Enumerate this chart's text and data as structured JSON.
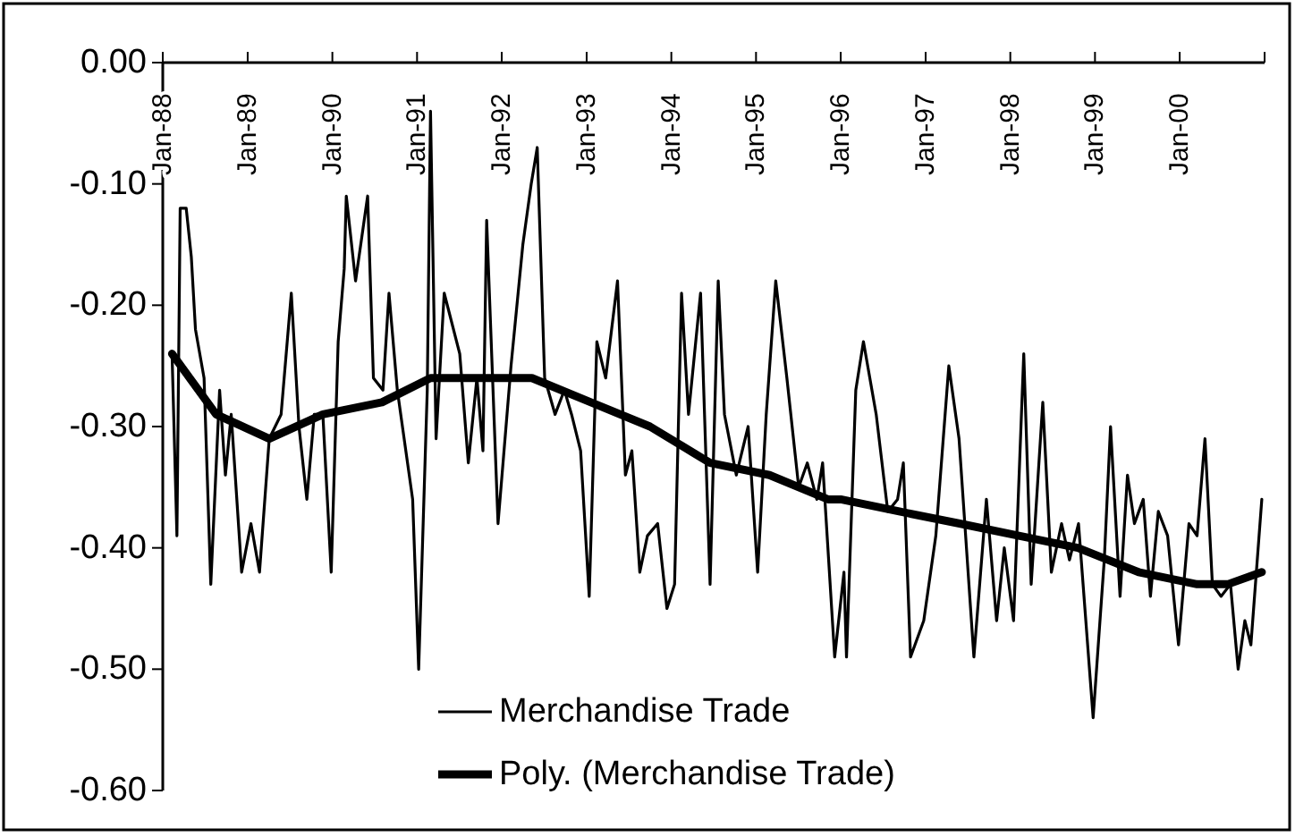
{
  "chart_data": {
    "type": "line",
    "xlim": [
      "1988-01-01",
      "2001-01-01"
    ],
    "xticks": [
      {
        "value": "1988-01-01",
        "label": "Jan-88"
      },
      {
        "value": "1989-01-01",
        "label": "Jan-89"
      },
      {
        "value": "1990-01-01",
        "label": "Jan-90"
      },
      {
        "value": "1991-01-01",
        "label": "Jan-91"
      },
      {
        "value": "1992-01-01",
        "label": "Jan-92"
      },
      {
        "value": "1993-01-01",
        "label": "Jan-93"
      },
      {
        "value": "1994-01-01",
        "label": "Jan-94"
      },
      {
        "value": "1995-01-01",
        "label": "Jan-95"
      },
      {
        "value": "1996-01-01",
        "label": "Jan-96"
      },
      {
        "value": "1997-01-01",
        "label": "Jan-97"
      },
      {
        "value": "1998-01-01",
        "label": "Jan-98"
      },
      {
        "value": "1999-01-01",
        "label": "Jan-99"
      },
      {
        "value": "2000-01-01",
        "label": "Jan-00"
      },
      {
        "value": "2001-01-01",
        "label": null
      }
    ],
    "ylim": [
      -0.6,
      0
    ],
    "yticks": [
      {
        "value": 0,
        "label": "0.00"
      },
      {
        "value": -0.1,
        "label": "-0.10"
      },
      {
        "value": -0.2,
        "label": "-0.20"
      },
      {
        "value": -0.3,
        "label": "-0.30"
      },
      {
        "value": -0.4,
        "label": "-0.40"
      },
      {
        "value": -0.5,
        "label": "-0.50"
      },
      {
        "value": -0.6,
        "label": "-0.60"
      }
    ],
    "grid": false,
    "legend": "bottom",
    "marker": "none",
    "line_style": "solid",
    "series": [
      {
        "name": "Merchandise Trade",
        "color": "#000000",
        "x": [
          "1988-02-10",
          "1988-03-02",
          "1988-03-16",
          "1988-04-11",
          "1988-05-03",
          "1988-05-21",
          "1988-06-27",
          "1988-07-26",
          "1988-09-02",
          "1988-09-27",
          "1988-10-22",
          "1988-12-06",
          "1989-01-15",
          "1989-02-21",
          "1989-04-04",
          "1989-05-25",
          "1989-07-08",
          "1989-08-10",
          "1989-09-13",
          "1989-10-15",
          "1989-11-21",
          "1989-12-27",
          "1990-01-26",
          "1990-02-21",
          "1990-03-02",
          "1990-04-11",
          "1990-06-02",
          "1990-06-27",
          "1990-08-07",
          "1990-09-02",
          "1990-10-08",
          "1990-12-13",
          "1991-01-08",
          "1991-02-14",
          "1991-02-28",
          "1991-03-24",
          "1991-04-28",
          "1991-07-04",
          "1991-08-10",
          "1991-09-16",
          "1991-10-12",
          "1991-10-28",
          "1991-12-16",
          "1992-02-10",
          "1992-04-01",
          "1992-05-07",
          "1992-06-02",
          "1992-07-04",
          "1992-08-18",
          "1992-09-27",
          "1992-10-28",
          "1992-12-06",
          "1993-01-12",
          "1993-02-14",
          "1993-03-24",
          "1993-05-14",
          "1993-06-17",
          "1993-07-15",
          "1993-08-18",
          "1993-09-20",
          "1993-11-03",
          "1993-12-13",
          "1994-01-15",
          "1994-02-14",
          "1994-03-16",
          "1994-05-07",
          "1994-06-17",
          "1994-07-22",
          "1994-08-18",
          "1994-10-08",
          "1994-11-28",
          "1995-01-08",
          "1995-02-14",
          "1995-03-27",
          "1995-05-14",
          "1995-07-04",
          "1995-08-10",
          "1995-09-20",
          "1995-10-15",
          "1995-12-06",
          "1996-01-15",
          "1996-01-26",
          "1996-03-06",
          "1996-04-08",
          "1996-06-02",
          "1996-07-22",
          "1996-09-02",
          "1996-09-27",
          "1996-10-28",
          "1996-12-24",
          "1997-02-14",
          "1997-04-11",
          "1997-05-25",
          "1997-07-28",
          "1997-09-20",
          "1997-11-03",
          "1997-12-06",
          "1998-01-15",
          "1998-02-28",
          "1998-04-01",
          "1998-05-21",
          "1998-06-27",
          "1998-08-10",
          "1998-09-13",
          "1998-10-22",
          "1998-12-24",
          "1999-02-10",
          "1999-03-09",
          "1999-04-19",
          "1999-05-21",
          "1999-06-20",
          "1999-07-28",
          "1999-08-28",
          "1999-10-01",
          "1999-11-10",
          "1999-12-27",
          "2000-02-10",
          "2000-03-16",
          "2000-04-19",
          "2000-05-21",
          "2000-06-27",
          "2000-08-07",
          "2000-09-09",
          "2000-10-08",
          "2000-11-03",
          "2000-12-20"
        ],
        "values": [
          -0.24,
          -0.39,
          -0.12,
          -0.12,
          -0.16,
          -0.22,
          -0.26,
          -0.43,
          -0.27,
          -0.34,
          -0.29,
          -0.42,
          -0.38,
          -0.42,
          -0.31,
          -0.29,
          -0.19,
          -0.3,
          -0.36,
          -0.29,
          -0.29,
          -0.42,
          -0.23,
          -0.17,
          -0.11,
          -0.18,
          -0.11,
          -0.26,
          -0.27,
          -0.19,
          -0.27,
          -0.36,
          -0.5,
          -0.27,
          -0.04,
          -0.31,
          -0.19,
          -0.24,
          -0.33,
          -0.26,
          -0.32,
          -0.13,
          -0.38,
          -0.25,
          -0.15,
          -0.1,
          -0.07,
          -0.26,
          -0.29,
          -0.27,
          -0.29,
          -0.32,
          -0.44,
          -0.23,
          -0.26,
          -0.18,
          -0.34,
          -0.32,
          -0.42,
          -0.39,
          -0.38,
          -0.45,
          -0.43,
          -0.19,
          -0.29,
          -0.19,
          -0.43,
          -0.18,
          -0.29,
          -0.34,
          -0.3,
          -0.42,
          -0.29,
          -0.18,
          -0.26,
          -0.35,
          -0.33,
          -0.36,
          -0.33,
          -0.49,
          -0.42,
          -0.49,
          -0.27,
          -0.23,
          -0.29,
          -0.37,
          -0.36,
          -0.33,
          -0.49,
          -0.46,
          -0.39,
          -0.25,
          -0.31,
          -0.49,
          -0.36,
          -0.46,
          -0.4,
          -0.46,
          -0.24,
          -0.43,
          -0.28,
          -0.42,
          -0.38,
          -0.41,
          -0.38,
          -0.54,
          -0.41,
          -0.3,
          -0.44,
          -0.34,
          -0.38,
          -0.36,
          -0.44,
          -0.37,
          -0.39,
          -0.48,
          -0.38,
          -0.39,
          -0.31,
          -0.43,
          -0.44,
          -0.43,
          -0.5,
          -0.46,
          -0.48,
          -0.36
        ]
      },
      {
        "name": "Poly. (Merchandise Trade)",
        "color": "#000000",
        "x": [
          "1988-02-10",
          "1988-08-18",
          "1989-04-04",
          "1989-11-21",
          "1990-08-03",
          "1991-02-28",
          "1991-08-21",
          "1992-05-10",
          "1993-01-19",
          "1993-10-01",
          "1994-06-17",
          "1995-02-28",
          "1995-11-07",
          "1996-01-01",
          "1996-09-09",
          "1997-05-28",
          "1998-02-07",
          "1998-10-19",
          "1999-07-08",
          "2000-03-16",
          "2000-07-26",
          "2000-12-20"
        ],
        "values": [
          -0.24,
          -0.29,
          -0.31,
          -0.29,
          -0.28,
          -0.26,
          -0.26,
          -0.26,
          -0.28,
          -0.3,
          -0.33,
          -0.34,
          -0.36,
          -0.36,
          -0.37,
          -0.38,
          -0.39,
          -0.4,
          -0.42,
          -0.43,
          -0.43,
          -0.42
        ]
      }
    ]
  }
}
